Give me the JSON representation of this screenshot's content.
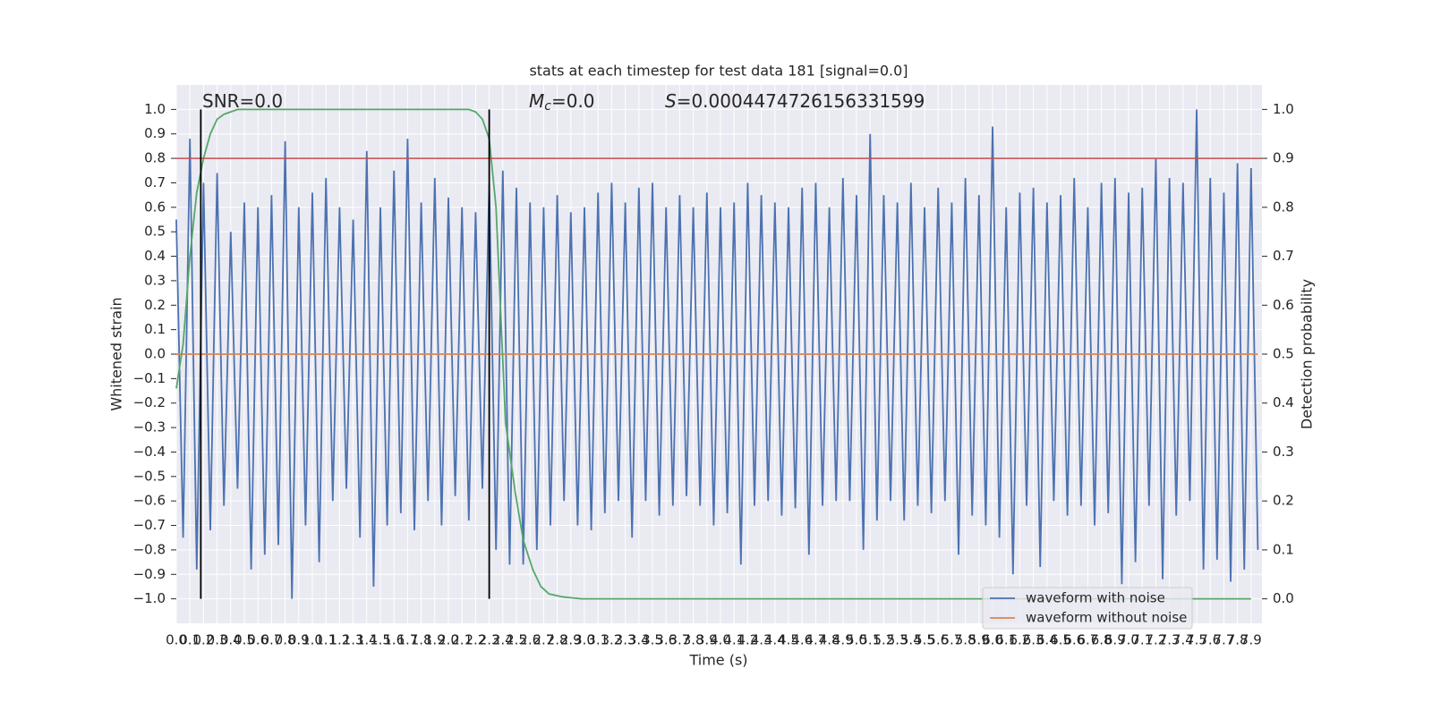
{
  "chart_data": {
    "type": "line",
    "title": "stats at each timestep for test data 181 [signal=0.0]",
    "xlabel": "Time (s)",
    "ylabel": "Whitened strain",
    "y2label": "Detection probability",
    "xlim": [
      0,
      7.98
    ],
    "ylim": [
      -1.1,
      1.1
    ],
    "y2lim": [
      -0.05,
      1.05
    ],
    "grid": true,
    "legend": "lower right",
    "annotations": [
      {
        "text": "SNR=0.0"
      },
      {
        "italic": "M",
        "sub": "c",
        "text": "=0.0"
      },
      {
        "italic": "S",
        "text": "=0.0004474726156331599"
      }
    ],
    "hline": {
      "value": 0.8,
      "color": "#c44e52"
    },
    "vlines": {
      "values": [
        0.18,
        2.3
      ],
      "span": [
        -1.0,
        1.0
      ],
      "color": "#000000"
    },
    "xticks": [
      {
        "value": 0,
        "label": "0.0"
      },
      0.1,
      0.2,
      0.3,
      0.4,
      0.5,
      0.6,
      0.7,
      0.8,
      0.9,
      {
        "value": 1,
        "label": "1.0"
      },
      1.1,
      1.2,
      1.3,
      1.4,
      1.5,
      1.6,
      1.7,
      1.8,
      1.9,
      {
        "value": 2,
        "label": "2.0"
      },
      2.1,
      2.2,
      2.3,
      2.4,
      2.5,
      2.6,
      2.7,
      2.8,
      2.9,
      {
        "value": 3,
        "label": "3.0"
      },
      3.1,
      3.2,
      3.3,
      3.4,
      3.5,
      3.6,
      3.7,
      3.8,
      3.9,
      {
        "value": 4,
        "label": "4.0"
      },
      4.1,
      4.2,
      4.3,
      4.4,
      4.5,
      4.6,
      4.7,
      4.8,
      4.9,
      {
        "value": 5,
        "label": "5.0"
      },
      5.1,
      5.2,
      5.3,
      5.4,
      5.5,
      5.6,
      5.7,
      5.8,
      5.9,
      {
        "value": 6,
        "label": "6.0"
      },
      6.1,
      6.2,
      6.3,
      6.4,
      6.5,
      6.6,
      6.7,
      6.8,
      6.9,
      {
        "value": 7,
        "label": "7.0"
      },
      7.1,
      7.2,
      7.3,
      7.4,
      7.5,
      7.6,
      7.7,
      7.8,
      7.9
    ],
    "yticks": [
      {
        "value": -1,
        "label": "−1.0"
      },
      {
        "value": -0.9,
        "label": "−0.9"
      },
      {
        "value": -0.8,
        "label": "−0.8"
      },
      {
        "value": -0.7,
        "label": "−0.7"
      },
      {
        "value": -0.6,
        "label": "−0.6"
      },
      {
        "value": -0.5,
        "label": "−0.5"
      },
      {
        "value": -0.4,
        "label": "−0.4"
      },
      {
        "value": -0.3,
        "label": "−0.3"
      },
      {
        "value": -0.2,
        "label": "−0.2"
      },
      {
        "value": -0.1,
        "label": "−0.1"
      },
      {
        "value": 0,
        "label": "0.0"
      },
      0.1,
      0.2,
      0.3,
      0.4,
      0.5,
      0.6,
      0.7,
      0.8,
      0.9,
      {
        "value": 1,
        "label": "1.0"
      }
    ],
    "y2ticks": [
      {
        "value": 0,
        "label": "0.0"
      },
      0.1,
      0.2,
      0.3,
      0.4,
      0.5,
      0.6,
      0.7,
      0.8,
      0.9,
      {
        "value": 1,
        "label": "1.0"
      }
    ],
    "series": [
      {
        "name": "waveform with noise",
        "color": "#4c72b0",
        "x": [
          0,
          0.05,
          0.1,
          0.15,
          0.2,
          0.25,
          0.3,
          0.35,
          0.4,
          0.45,
          0.5,
          0.55,
          0.6,
          0.65,
          0.7,
          0.75,
          0.8,
          0.85,
          0.9,
          0.95,
          1,
          1.05,
          1.1,
          1.15,
          1.2,
          1.25,
          1.3,
          1.35,
          1.4,
          1.45,
          1.5,
          1.55,
          1.6,
          1.65,
          1.7,
          1.75,
          1.8,
          1.85,
          1.9,
          1.95,
          2,
          2.05,
          2.1,
          2.15,
          2.2,
          2.25,
          2.3,
          2.35,
          2.4,
          2.45,
          2.5,
          2.55,
          2.6,
          2.65,
          2.7,
          2.75,
          2.8,
          2.85,
          2.9,
          2.95,
          3,
          3.05,
          3.1,
          3.15,
          3.2,
          3.25,
          3.3,
          3.35,
          3.4,
          3.45,
          3.5,
          3.55,
          3.6,
          3.65,
          3.7,
          3.75,
          3.8,
          3.85,
          3.9,
          3.95,
          4,
          4.05,
          4.1,
          4.15,
          4.2,
          4.25,
          4.3,
          4.35,
          4.4,
          4.45,
          4.5,
          4.55,
          4.6,
          4.65,
          4.7,
          4.75,
          4.8,
          4.85,
          4.9,
          4.95,
          5,
          5.05,
          5.1,
          5.15,
          5.2,
          5.25,
          5.3,
          5.35,
          5.4,
          5.45,
          5.5,
          5.55,
          5.6,
          5.65,
          5.7,
          5.75,
          5.8,
          5.85,
          5.9,
          5.95,
          6,
          6.05,
          6.1,
          6.15,
          6.2,
          6.25,
          6.3,
          6.35,
          6.4,
          6.45,
          6.5,
          6.55,
          6.6,
          6.65,
          6.7,
          6.75,
          6.8,
          6.85,
          6.9,
          6.95,
          7,
          7.05,
          7.1,
          7.15,
          7.2,
          7.25,
          7.3,
          7.35,
          7.4,
          7.45,
          7.5,
          7.55,
          7.6,
          7.65,
          7.7,
          7.75,
          7.8,
          7.85,
          7.9,
          7.95
        ],
        "values": [
          0.55,
          -0.75,
          0.88,
          -0.88,
          0.7,
          -0.72,
          0.74,
          -0.62,
          0.5,
          -0.55,
          0.62,
          -0.88,
          0.6,
          -0.82,
          0.65,
          -0.78,
          0.87,
          -1.0,
          0.6,
          -0.7,
          0.66,
          -0.85,
          0.72,
          -0.6,
          0.6,
          -0.55,
          0.55,
          -0.75,
          0.83,
          -0.95,
          0.6,
          -0.7,
          0.75,
          -0.65,
          0.88,
          -0.72,
          0.62,
          -0.6,
          0.72,
          -0.7,
          0.64,
          -0.58,
          0.6,
          -0.68,
          0.58,
          -0.55,
          0.7,
          -0.8,
          0.75,
          -0.86,
          0.68,
          -0.86,
          0.62,
          -0.8,
          0.6,
          -0.7,
          0.65,
          -0.6,
          0.58,
          -0.7,
          0.6,
          -0.72,
          0.66,
          -0.65,
          0.7,
          -0.6,
          0.62,
          -0.75,
          0.68,
          -0.6,
          0.7,
          -0.66,
          0.6,
          -0.62,
          0.65,
          -0.58,
          0.6,
          -0.62,
          0.66,
          -0.7,
          0.6,
          -0.65,
          0.62,
          -0.86,
          0.7,
          -0.62,
          0.65,
          -0.6,
          0.62,
          -0.66,
          0.6,
          -0.63,
          0.68,
          -0.82,
          0.7,
          -0.62,
          0.6,
          -0.6,
          0.72,
          -0.6,
          0.65,
          -0.8,
          0.9,
          -0.68,
          0.65,
          -0.6,
          0.62,
          -0.68,
          0.7,
          -0.62,
          0.6,
          -0.65,
          0.68,
          -0.6,
          0.62,
          -0.82,
          0.72,
          -0.66,
          0.65,
          -0.7,
          0.93,
          -0.75,
          0.6,
          -0.9,
          0.66,
          -0.62,
          0.68,
          -0.87,
          0.62,
          -0.6,
          0.65,
          -0.66,
          0.72,
          -0.62,
          0.6,
          -0.7,
          0.7,
          -0.65,
          0.72,
          -0.94,
          0.66,
          -0.85,
          0.68,
          -0.62,
          0.8,
          -0.92,
          0.72,
          -0.66,
          0.7,
          -0.6,
          1.0,
          -0.88,
          0.72,
          -0.84,
          0.66,
          -0.93,
          0.78,
          -0.88,
          0.76,
          -0.8
        ]
      },
      {
        "name": "waveform without noise",
        "color": "#dd8452",
        "x": [
          0,
          7.95
        ],
        "values": [
          0,
          0
        ]
      },
      {
        "color": "#55a868",
        "axis": "y2",
        "x": [
          0,
          0.05,
          0.1,
          0.15,
          0.2,
          0.25,
          0.3,
          0.35,
          0.4,
          0.45,
          2.15,
          2.2,
          2.25,
          2.3,
          2.35,
          2.42,
          2.49,
          2.55,
          2.62,
          2.68,
          2.74,
          2.84,
          2.98,
          7.9
        ],
        "values": [
          0.43,
          0.52,
          0.7,
          0.83,
          0.9,
          0.95,
          0.98,
          0.99,
          0.995,
          1.0,
          1.0,
          0.995,
          0.98,
          0.94,
          0.8,
          0.36,
          0.22,
          0.12,
          0.06,
          0.025,
          0.01,
          0.004,
          0.0,
          0.0
        ]
      }
    ]
  }
}
